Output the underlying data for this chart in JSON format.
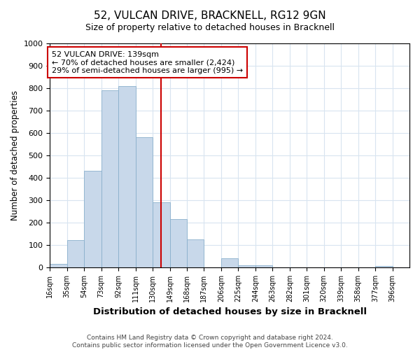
{
  "title": "52, VULCAN DRIVE, BRACKNELL, RG12 9GN",
  "subtitle": "Size of property relative to detached houses in Bracknell",
  "xlabel": "Distribution of detached houses by size in Bracknell",
  "ylabel": "Number of detached properties",
  "bar_color": "#c8d8ea",
  "bar_edge_color": "#8ab0cc",
  "background_color": "#ffffff",
  "grid_color": "#d8e4f0",
  "annotation_box_color": "#ffffff",
  "annotation_box_edge": "#cc0000",
  "marker_line_color": "#cc0000",
  "bins": [
    16,
    35,
    54,
    73,
    92,
    111,
    130,
    149,
    168,
    187,
    206,
    225,
    244,
    263,
    282,
    301,
    320,
    339,
    358,
    377,
    396
  ],
  "heights": [
    15,
    120,
    430,
    790,
    808,
    580,
    290,
    215,
    125,
    0,
    40,
    10,
    10,
    0,
    0,
    0,
    0,
    0,
    0,
    5
  ],
  "marker_value": 139,
  "ylim": [
    0,
    1000
  ],
  "yticks": [
    0,
    100,
    200,
    300,
    400,
    500,
    600,
    700,
    800,
    900,
    1000
  ],
  "annotation_line1": "52 VULCAN DRIVE: 139sqm",
  "annotation_line2": "← 70% of detached houses are smaller (2,424)",
  "annotation_line3": "29% of semi-detached houses are larger (995) →",
  "footer_line1": "Contains HM Land Registry data © Crown copyright and database right 2024.",
  "footer_line2": "Contains public sector information licensed under the Open Government Licence v3.0."
}
